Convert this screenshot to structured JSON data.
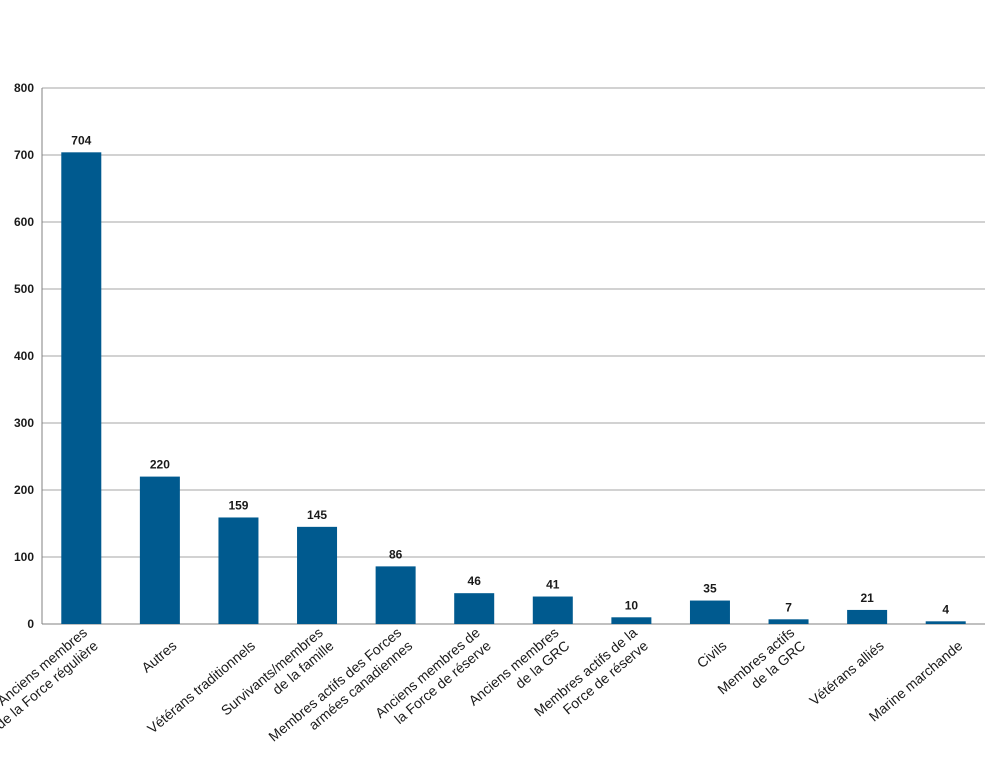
{
  "chart_data": {
    "type": "bar",
    "title": "",
    "xlabel": "",
    "ylabel": "",
    "ylim": [
      0,
      800
    ],
    "yticks": [
      0,
      100,
      200,
      300,
      400,
      500,
      600,
      700,
      800
    ],
    "grid": true,
    "legend": "none",
    "bar_color": "#005a8f",
    "categories": [
      [
        "Anciens membres",
        "de la Force régulière"
      ],
      [
        "Autres"
      ],
      [
        "Vétérans traditionnels"
      ],
      [
        "Survivants/membres",
        "de la famille"
      ],
      [
        "Membres actifs des Forces",
        "armées canadiennes"
      ],
      [
        "Anciens membres de",
        "la Force de réserve"
      ],
      [
        "Anciens membres",
        "de la GRC"
      ],
      [
        "Membres actifs de la",
        "Force de réserve"
      ],
      [
        "Civils"
      ],
      [
        "Membres actifs",
        "de la GRC"
      ],
      [
        "Vétérans alliés"
      ],
      [
        "Marine marchande"
      ]
    ],
    "values": [
      704,
      220,
      159,
      145,
      86,
      46,
      41,
      10,
      35,
      7,
      21,
      4
    ]
  }
}
